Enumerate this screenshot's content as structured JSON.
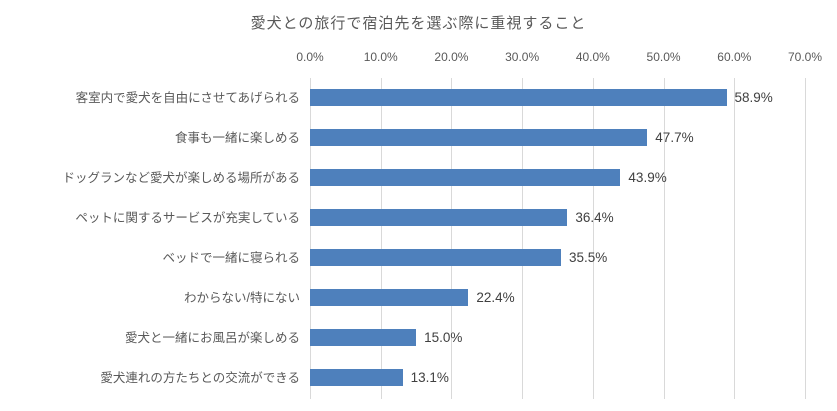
{
  "chart_data": {
    "type": "bar",
    "orientation": "horizontal",
    "title": "愛犬との旅行で宿泊先を選ぶ際に重視すること",
    "categories": [
      "客室内で愛犬を自由にさせてあげられる",
      "食事も一緒に楽しめる",
      "ドッグランなど愛犬が楽しめる場所がある",
      "ペットに関するサービスが充実している",
      "ベッドで一緒に寝られる",
      "わからない/特にない",
      "愛犬と一緒にお風呂が楽しめる",
      "愛犬連れの方たちとの交流ができる"
    ],
    "values": [
      58.9,
      47.7,
      43.9,
      36.4,
      35.5,
      22.4,
      15.0,
      13.1
    ],
    "value_labels": [
      "58.9%",
      "47.7%",
      "43.9%",
      "36.4%",
      "35.5%",
      "22.4%",
      "15.0%",
      "13.1%"
    ],
    "xlabel": "",
    "ylabel": "",
    "x_axis": {
      "min": 0,
      "max": 70,
      "step": 10,
      "ticks": [
        "0.0%",
        "10.0%",
        "20.0%",
        "30.0%",
        "40.0%",
        "50.0%",
        "60.0%",
        "70.0%"
      ]
    },
    "grid": "vertical",
    "legend": "none",
    "colors": {
      "bar": "#4e80bc",
      "gridline": "#d9d9d9",
      "axis_text": "#595959",
      "category_text": "#595959",
      "value_text": "#404040",
      "title_text": "#595959",
      "background": "#ffffff"
    }
  }
}
